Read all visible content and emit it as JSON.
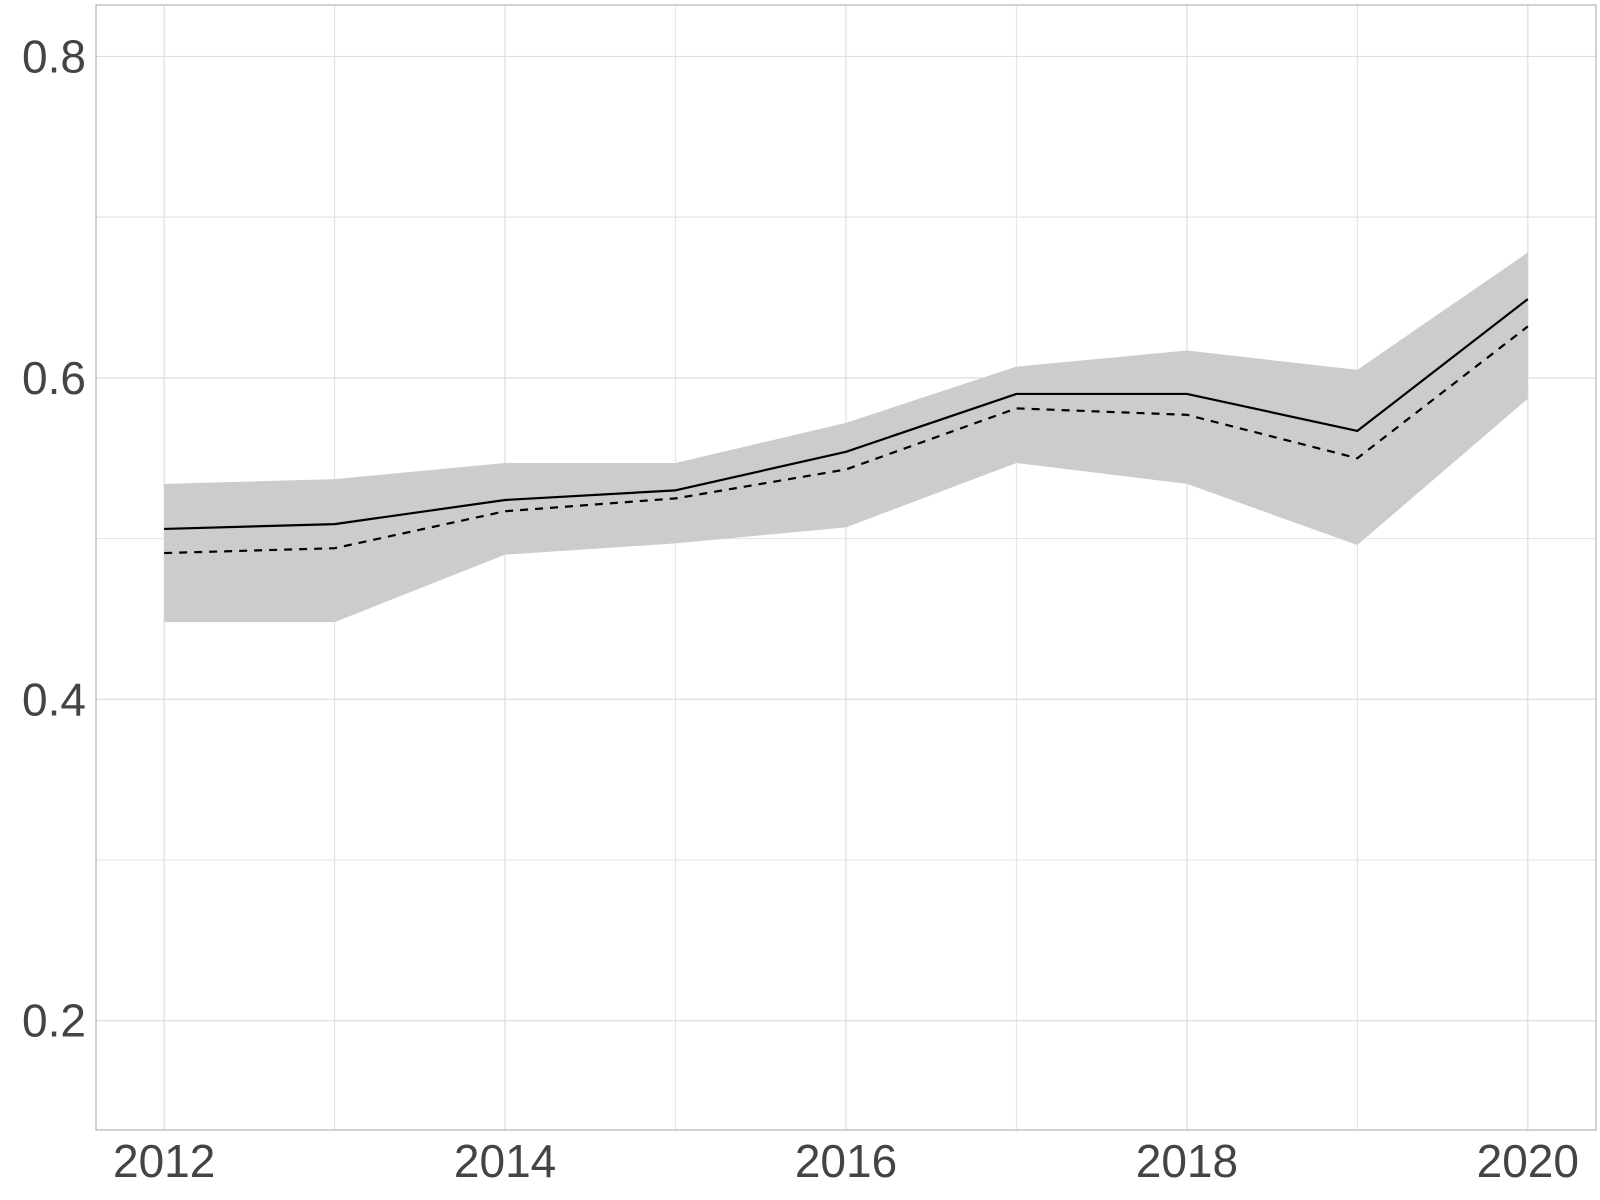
{
  "chart_data": {
    "type": "line",
    "title": "",
    "xlabel": "",
    "ylabel": "",
    "x": [
      2012,
      2013,
      2014,
      2015,
      2016,
      2017,
      2018,
      2019,
      2020
    ],
    "xlim": [
      2011.6,
      2020.4
    ],
    "ylim": [
      0.132,
      0.832
    ],
    "x_ticks": [
      2012,
      2014,
      2016,
      2018,
      2020
    ],
    "x_tick_labels": [
      "2012",
      "2014",
      "2016",
      "2018",
      "2020"
    ],
    "y_ticks": [
      0.2,
      0.4,
      0.6,
      0.8
    ],
    "y_tick_labels": [
      "0.2",
      "0.4",
      "0.6",
      "0.8"
    ],
    "y_minor_gridlines": [
      0.3,
      0.5,
      0.7
    ],
    "grid": true,
    "legend": "none",
    "band": {
      "upper": [
        0.534,
        0.537,
        0.547,
        0.547,
        0.572,
        0.607,
        0.617,
        0.605,
        0.678
      ],
      "lower": [
        0.448,
        0.448,
        0.49,
        0.497,
        0.507,
        0.547,
        0.534,
        0.496,
        0.587
      ],
      "color": "#cccccc"
    },
    "series": [
      {
        "style": "solid",
        "color": "#000000",
        "values": [
          0.506,
          0.509,
          0.524,
          0.53,
          0.554,
          0.59,
          0.59,
          0.567,
          0.649
        ]
      },
      {
        "style": "dashed",
        "color": "#000000",
        "values": [
          0.491,
          0.494,
          0.517,
          0.525,
          0.543,
          0.581,
          0.577,
          0.55,
          0.632
        ]
      }
    ]
  }
}
